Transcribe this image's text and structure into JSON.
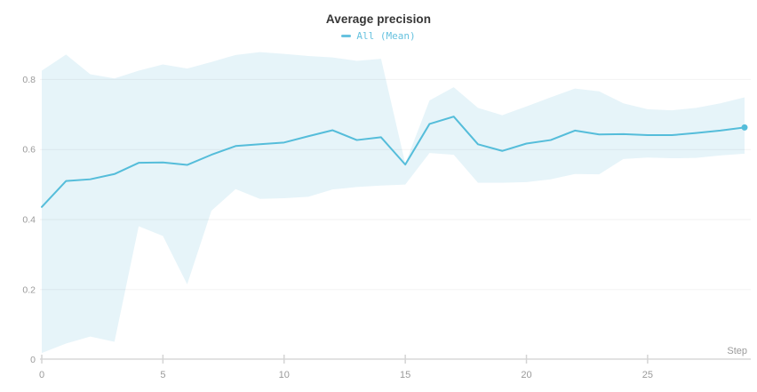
{
  "chart_data": {
    "type": "line",
    "title": "Average precision",
    "legend": {
      "position": "top-center",
      "entries": [
        {
          "label": "All (Mean)",
          "color": "#67c2df"
        }
      ]
    },
    "x": [
      0,
      1,
      2,
      3,
      4,
      5,
      6,
      7,
      8,
      9,
      10,
      11,
      12,
      13,
      14,
      15,
      16,
      17,
      18,
      19,
      20,
      21,
      22,
      23,
      24,
      25,
      26,
      27,
      28,
      29
    ],
    "series": [
      {
        "name": "All (Mean)",
        "values": [
          0.436,
          0.51,
          0.515,
          0.53,
          0.562,
          0.563,
          0.556,
          0.585,
          0.61,
          0.615,
          0.62,
          0.638,
          0.655,
          0.627,
          0.635,
          0.557,
          0.673,
          0.694,
          0.615,
          0.596,
          0.617,
          0.627,
          0.654,
          0.643,
          0.644,
          0.641,
          0.641,
          0.647,
          0.654,
          0.663
        ]
      }
    ],
    "band": {
      "series": "All (Mean)",
      "upper": [
        0.825,
        0.871,
        0.815,
        0.803,
        0.825,
        0.843,
        0.831,
        0.85,
        0.87,
        0.878,
        0.873,
        0.867,
        0.863,
        0.853,
        0.859,
        0.56,
        0.74,
        0.778,
        0.719,
        0.698,
        0.723,
        0.749,
        0.774,
        0.766,
        0.732,
        0.715,
        0.712,
        0.719,
        0.732,
        0.749
      ],
      "lower": [
        0.019,
        0.046,
        0.066,
        0.051,
        0.381,
        0.353,
        0.215,
        0.425,
        0.487,
        0.459,
        0.461,
        0.465,
        0.486,
        0.493,
        0.497,
        0.5,
        0.59,
        0.585,
        0.505,
        0.505,
        0.507,
        0.515,
        0.53,
        0.529,
        0.573,
        0.577,
        0.575,
        0.576,
        0.583,
        0.588
      ]
    },
    "x_axis": {
      "label": "Step",
      "ticks": [
        0,
        5,
        10,
        15,
        20,
        25
      ],
      "range": [
        0,
        29
      ]
    },
    "y_axis": {
      "ticks": [
        0,
        0.2,
        0.4,
        0.6,
        0.8
      ],
      "range": [
        0,
        0.9
      ],
      "grid": true
    },
    "last_point": {
      "x": 29,
      "y": 0.663,
      "marker": "dot"
    },
    "colors": {
      "line": "#55bdda",
      "band": "#e6f4f9",
      "title": "#363636",
      "tick_label": "#9a9a9a",
      "grid": "#ececec",
      "axis": "#e2e2e2",
      "tick_mark": "#d4d4d4"
    }
  }
}
